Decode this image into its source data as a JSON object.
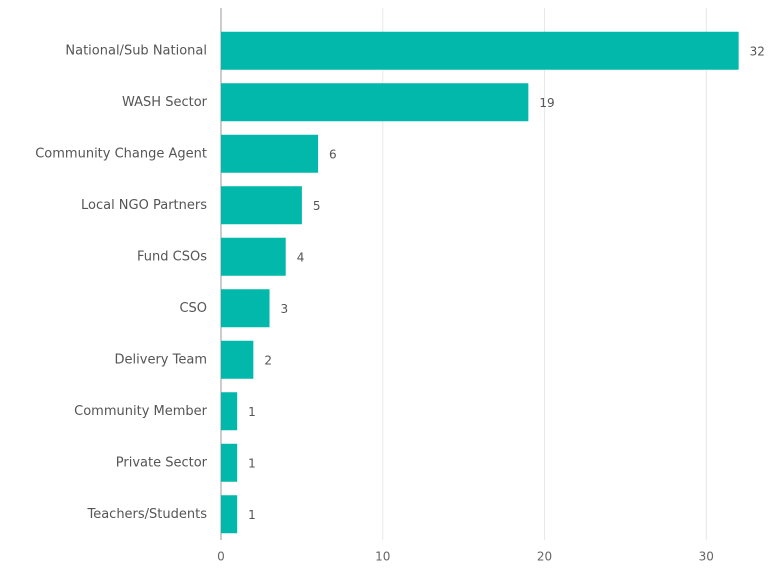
{
  "chart_data": {
    "type": "bar",
    "orientation": "horizontal",
    "categories": [
      "National/Sub National",
      "WASH Sector",
      "Community Change Agent",
      "Local NGO Partners",
      "Fund CSOs",
      "CSO",
      "Delivery Team",
      "Community Member",
      "Private Sector",
      "Teachers/Students"
    ],
    "values": [
      32,
      19,
      6,
      5,
      4,
      3,
      2,
      1,
      1,
      1
    ],
    "color": "#01b8aa",
    "xlim": [
      0,
      34
    ],
    "xticks": [
      0,
      10,
      20,
      30
    ],
    "grid": true
  }
}
